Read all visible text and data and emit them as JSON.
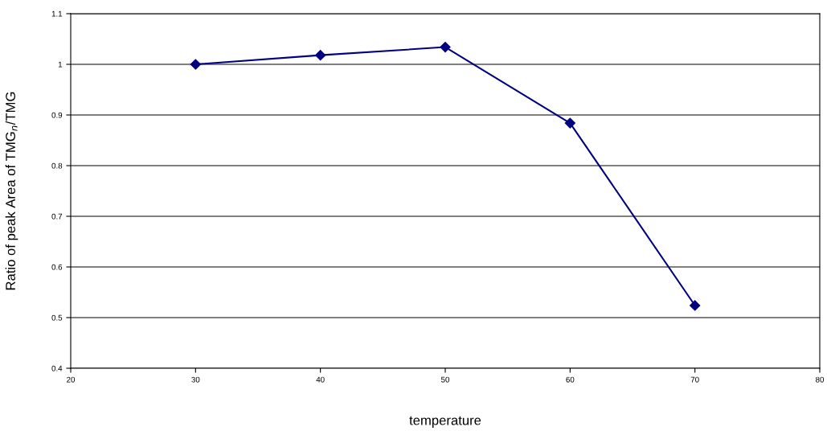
{
  "chart_data": {
    "type": "line",
    "xlabel": "temperature",
    "ylabel": "Ratio of peak Area of TMG$_{n}$/TMG",
    "x": [
      30,
      40,
      50,
      60,
      70
    ],
    "series": [
      {
        "color": "#000080",
        "values": [
          1.0,
          1.018,
          1.034,
          0.884,
          0.524
        ]
      }
    ],
    "xlim": [
      20,
      80
    ],
    "xticks": [
      20,
      30,
      40,
      50,
      60,
      70,
      80
    ],
    "ylim": [
      0.4,
      1.1
    ],
    "yticks": [
      0.4,
      0.5,
      0.6,
      0.7,
      0.8,
      0.9,
      1,
      1.1
    ],
    "grid": "y",
    "marker": "diamond",
    "line_style": "solid",
    "legend": false
  }
}
